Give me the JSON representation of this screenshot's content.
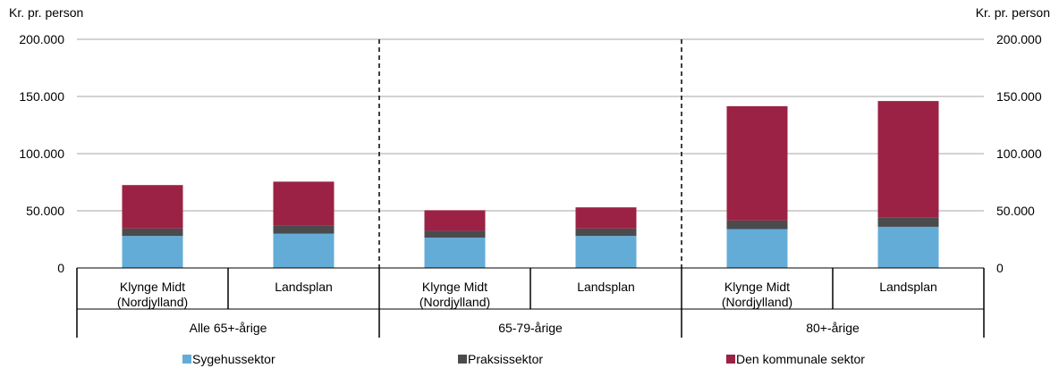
{
  "chart_data": {
    "type": "bar",
    "stacked": true,
    "ylabel_left": "Kr. pr. person",
    "ylabel_right": "Kr. pr. person",
    "ylim": [
      0,
      200000
    ],
    "yticks": [
      0,
      50000,
      100000,
      150000,
      200000
    ],
    "ytick_labels": [
      "0",
      "50.000",
      "100.000",
      "150.000",
      "200.000"
    ],
    "grid": true,
    "legend_position": "bottom",
    "groups": [
      {
        "label": "Alle 65+-årige",
        "categories": [
          "Klynge Midt\n(Nordjylland)",
          "Landsplan"
        ]
      },
      {
        "label": "65-79-årige",
        "categories": [
          "Klynge Midt\n(Nordjylland)",
          "Landsplan"
        ]
      },
      {
        "label": "80+-årige",
        "categories": [
          "Klynge Midt\n(Nordjylland)",
          "Landsplan"
        ]
      }
    ],
    "series": [
      {
        "name": "Sygehussektor",
        "color": "#64acd8",
        "values": [
          28000,
          30000,
          26500,
          28000,
          34000,
          36000
        ]
      },
      {
        "name": "Praksissektor",
        "color": "#4a4b4d",
        "values": [
          6500,
          7000,
          6000,
          6500,
          7500,
          8000
        ]
      },
      {
        "name": "Den kommunale sektor",
        "color": "#9b2244",
        "values": [
          38000,
          38500,
          18000,
          18500,
          100000,
          102000
        ]
      }
    ]
  }
}
